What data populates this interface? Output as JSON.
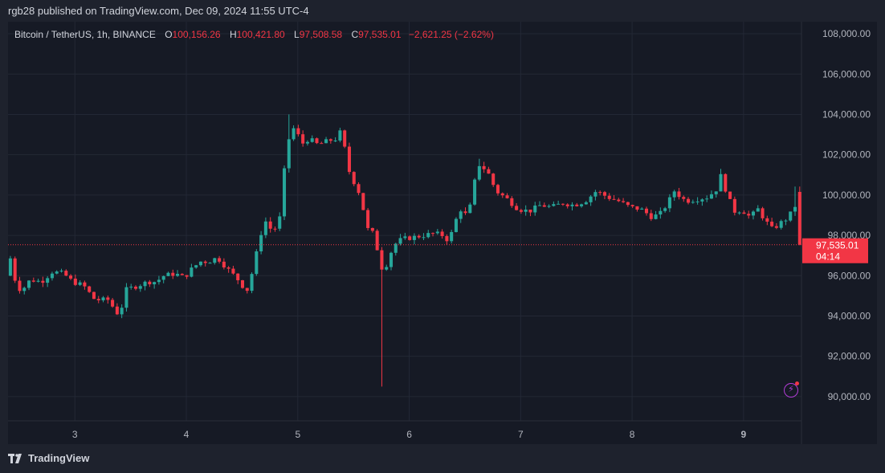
{
  "caption": "rgb28 published on TradingView.com, Dec 09, 2024 11:55 UTC-4",
  "legend": {
    "symbol": "Bitcoin / TetherUS, 1h, BINANCE",
    "open_key": "O",
    "open": "100,156.26",
    "high_key": "H",
    "high": "100,421.80",
    "low_key": "L",
    "low": "97,508.58",
    "close_key": "C",
    "close": "97,535.01",
    "change": "−2,621.25 (−2.62%)"
  },
  "price_label": {
    "price": "97,535.01",
    "countdown": "04:14"
  },
  "brand": "TradingView",
  "colors": {
    "up": "#26a69a",
    "down": "#f23645",
    "grid": "#232835",
    "axis_text": "#b2b5be"
  },
  "icons": {
    "brand": "tradingview-logo-icon",
    "alert": "lightning-icon"
  },
  "chart_data": {
    "type": "candlestick",
    "x_unit": "day of December 2024 (hourly candles)",
    "x_range": [
      2.4,
      9.52
    ],
    "y_range": [
      88800,
      108600
    ],
    "x_ticks": [
      {
        "value": 3,
        "label": "3"
      },
      {
        "value": 4,
        "label": "4"
      },
      {
        "value": 5,
        "label": "5"
      },
      {
        "value": 6,
        "label": "6"
      },
      {
        "value": 7,
        "label": "7"
      },
      {
        "value": 8,
        "label": "8"
      },
      {
        "value": 9,
        "label": "9"
      }
    ],
    "y_ticks": [
      {
        "value": 108000,
        "label": "108,000.00"
      },
      {
        "value": 106000,
        "label": "106,000.00"
      },
      {
        "value": 104000,
        "label": "104,000.00"
      },
      {
        "value": 102000,
        "label": "102,000.00"
      },
      {
        "value": 100000,
        "label": "100,000.00"
      },
      {
        "value": 98000,
        "label": "98,000.00"
      },
      {
        "value": 96000,
        "label": "96,000.00"
      },
      {
        "value": 94000,
        "label": "94,000.00"
      },
      {
        "value": 92000,
        "label": "92,000.00"
      },
      {
        "value": 90000,
        "label": "90,000.00"
      }
    ],
    "last_price": 97535.01,
    "anchors": [
      [
        2.4,
        96000
      ],
      [
        2.44,
        96900
      ],
      [
        2.5,
        95400
      ],
      [
        2.55,
        95300
      ],
      [
        2.62,
        95800
      ],
      [
        2.72,
        95700
      ],
      [
        2.82,
        96200
      ],
      [
        2.92,
        96100
      ],
      [
        3.0,
        95700
      ],
      [
        3.1,
        95500
      ],
      [
        3.2,
        94800
      ],
      [
        3.32,
        94800
      ],
      [
        3.38,
        94300
      ],
      [
        3.42,
        94000
      ],
      [
        3.48,
        95300
      ],
      [
        3.58,
        95500
      ],
      [
        3.68,
        95700
      ],
      [
        3.75,
        95700
      ],
      [
        3.82,
        96000
      ],
      [
        3.92,
        96100
      ],
      [
        4.0,
        95900
      ],
      [
        4.08,
        96400
      ],
      [
        4.15,
        96700
      ],
      [
        4.22,
        96700
      ],
      [
        4.3,
        96900
      ],
      [
        4.38,
        96400
      ],
      [
        4.45,
        96000
      ],
      [
        4.52,
        95600
      ],
      [
        4.55,
        95000
      ],
      [
        4.6,
        95900
      ],
      [
        4.65,
        97100
      ],
      [
        4.72,
        98800
      ],
      [
        4.78,
        98300
      ],
      [
        4.85,
        98400
      ],
      [
        4.9,
        101200
      ],
      [
        4.95,
        103100
      ],
      [
        5.0,
        103400
      ],
      [
        5.05,
        102500
      ],
      [
        5.12,
        102800
      ],
      [
        5.2,
        102500
      ],
      [
        5.3,
        102700
      ],
      [
        5.38,
        102800
      ],
      [
        5.42,
        103400
      ],
      [
        5.45,
        101900
      ],
      [
        5.5,
        100800
      ],
      [
        5.55,
        100500
      ],
      [
        5.6,
        99500
      ],
      [
        5.65,
        98300
      ],
      [
        5.72,
        98000
      ],
      [
        5.75,
        96500
      ],
      [
        5.8,
        96300
      ],
      [
        5.88,
        97500
      ],
      [
        5.95,
        97800
      ],
      [
        6.05,
        97900
      ],
      [
        6.15,
        98000
      ],
      [
        6.25,
        98100
      ],
      [
        6.32,
        98000
      ],
      [
        6.38,
        97700
      ],
      [
        6.42,
        98500
      ],
      [
        6.48,
        99300
      ],
      [
        6.55,
        98900
      ],
      [
        6.6,
        100500
      ],
      [
        6.65,
        101500
      ],
      [
        6.72,
        101200
      ],
      [
        6.8,
        100200
      ],
      [
        6.9,
        99800
      ],
      [
        7.0,
        99300
      ],
      [
        7.1,
        99200
      ],
      [
        7.2,
        99500
      ],
      [
        7.3,
        99400
      ],
      [
        7.4,
        99600
      ],
      [
        7.5,
        99500
      ],
      [
        7.6,
        99700
      ],
      [
        7.7,
        100200
      ],
      [
        7.8,
        99900
      ],
      [
        7.9,
        99700
      ],
      [
        8.0,
        99400
      ],
      [
        8.1,
        99300
      ],
      [
        8.2,
        98900
      ],
      [
        8.28,
        99100
      ],
      [
        8.35,
        99700
      ],
      [
        8.4,
        100200
      ],
      [
        8.5,
        99700
      ],
      [
        8.6,
        99800
      ],
      [
        8.7,
        99900
      ],
      [
        8.78,
        100300
      ],
      [
        8.82,
        101000
      ],
      [
        8.88,
        99900
      ],
      [
        8.95,
        99100
      ],
      [
        9.0,
        99300
      ],
      [
        9.08,
        98900
      ],
      [
        9.15,
        99300
      ],
      [
        9.22,
        98700
      ],
      [
        9.28,
        98300
      ],
      [
        9.35,
        98600
      ],
      [
        9.4,
        98800
      ],
      [
        9.44,
        99000
      ],
      [
        9.47,
        100156.26
      ],
      [
        9.52,
        97535.01
      ]
    ],
    "wick_outliers": [
      {
        "x": 5.75,
        "low": 90500
      },
      {
        "x": 4.93,
        "high": 104000
      },
      {
        "x": 6.63,
        "high": 101800
      },
      {
        "x": 8.8,
        "high": 101300
      },
      {
        "x": 9.47,
        "high": 100421.8
      }
    ]
  }
}
